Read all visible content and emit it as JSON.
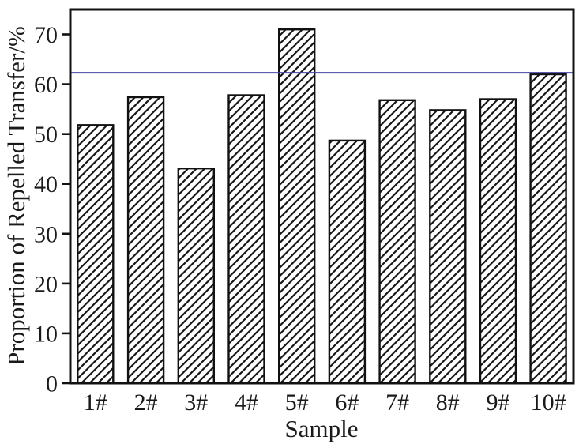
{
  "chart_data": {
    "type": "bar",
    "categories": [
      "1#",
      "2#",
      "3#",
      "4#",
      "5#",
      "6#",
      "7#",
      "8#",
      "9#",
      "10#"
    ],
    "values": [
      51.8,
      57.4,
      43.1,
      57.8,
      71.0,
      48.7,
      56.8,
      54.8,
      57.0,
      62.0
    ],
    "xlabel": "Sample",
    "ylabel": "Proportion of Repelled Transfer/%",
    "ylim": [
      0,
      75
    ],
    "yticks": [
      0,
      10,
      20,
      30,
      40,
      50,
      60,
      70
    ],
    "reference_line": {
      "y": 62.3,
      "color": "#4545a8"
    },
    "bar_style": {
      "fill": "#ffffff",
      "hatch": "diagonal-forward",
      "hatch_color": "#161616",
      "outline_color": "#111111"
    },
    "axis_color": "#111111",
    "text_color": "#1a1a1a",
    "grid": false,
    "legend": null
  }
}
